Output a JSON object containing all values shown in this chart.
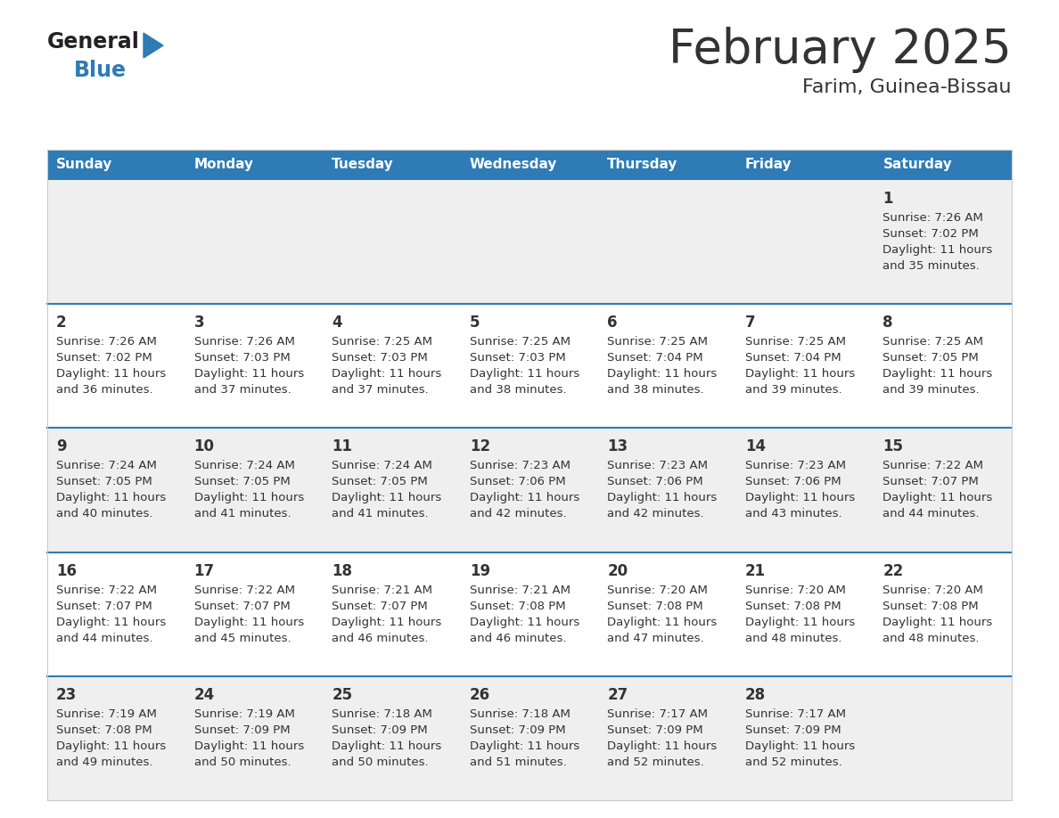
{
  "title": "February 2025",
  "subtitle": "Farim, Guinea-Bissau",
  "header_bg_color": "#2E7BB5",
  "header_text_color": "#FFFFFF",
  "cell_bg_color_odd": "#EFEFEF",
  "cell_bg_color_even": "#FFFFFF",
  "divider_color": "#2E7BB5",
  "text_color": "#333333",
  "days_of_week": [
    "Sunday",
    "Monday",
    "Tuesday",
    "Wednesday",
    "Thursday",
    "Friday",
    "Saturday"
  ],
  "logo_color1": "#222222",
  "logo_color2": "#2E7BB5",
  "calendar": [
    [
      null,
      null,
      null,
      null,
      null,
      null,
      {
        "day": 1,
        "sunrise": "7:26 AM",
        "sunset": "7:02 PM",
        "daylight": "11 hours",
        "daylight2": "and 35 minutes."
      }
    ],
    [
      {
        "day": 2,
        "sunrise": "7:26 AM",
        "sunset": "7:02 PM",
        "daylight": "11 hours",
        "daylight2": "and 36 minutes."
      },
      {
        "day": 3,
        "sunrise": "7:26 AM",
        "sunset": "7:03 PM",
        "daylight": "11 hours",
        "daylight2": "and 37 minutes."
      },
      {
        "day": 4,
        "sunrise": "7:25 AM",
        "sunset": "7:03 PM",
        "daylight": "11 hours",
        "daylight2": "and 37 minutes."
      },
      {
        "day": 5,
        "sunrise": "7:25 AM",
        "sunset": "7:03 PM",
        "daylight": "11 hours",
        "daylight2": "and 38 minutes."
      },
      {
        "day": 6,
        "sunrise": "7:25 AM",
        "sunset": "7:04 PM",
        "daylight": "11 hours",
        "daylight2": "and 38 minutes."
      },
      {
        "day": 7,
        "sunrise": "7:25 AM",
        "sunset": "7:04 PM",
        "daylight": "11 hours",
        "daylight2": "and 39 minutes."
      },
      {
        "day": 8,
        "sunrise": "7:25 AM",
        "sunset": "7:05 PM",
        "daylight": "11 hours",
        "daylight2": "and 39 minutes."
      }
    ],
    [
      {
        "day": 9,
        "sunrise": "7:24 AM",
        "sunset": "7:05 PM",
        "daylight": "11 hours",
        "daylight2": "and 40 minutes."
      },
      {
        "day": 10,
        "sunrise": "7:24 AM",
        "sunset": "7:05 PM",
        "daylight": "11 hours",
        "daylight2": "and 41 minutes."
      },
      {
        "day": 11,
        "sunrise": "7:24 AM",
        "sunset": "7:05 PM",
        "daylight": "11 hours",
        "daylight2": "and 41 minutes."
      },
      {
        "day": 12,
        "sunrise": "7:23 AM",
        "sunset": "7:06 PM",
        "daylight": "11 hours",
        "daylight2": "and 42 minutes."
      },
      {
        "day": 13,
        "sunrise": "7:23 AM",
        "sunset": "7:06 PM",
        "daylight": "11 hours",
        "daylight2": "and 42 minutes."
      },
      {
        "day": 14,
        "sunrise": "7:23 AM",
        "sunset": "7:06 PM",
        "daylight": "11 hours",
        "daylight2": "and 43 minutes."
      },
      {
        "day": 15,
        "sunrise": "7:22 AM",
        "sunset": "7:07 PM",
        "daylight": "11 hours",
        "daylight2": "and 44 minutes."
      }
    ],
    [
      {
        "day": 16,
        "sunrise": "7:22 AM",
        "sunset": "7:07 PM",
        "daylight": "11 hours",
        "daylight2": "and 44 minutes."
      },
      {
        "day": 17,
        "sunrise": "7:22 AM",
        "sunset": "7:07 PM",
        "daylight": "11 hours",
        "daylight2": "and 45 minutes."
      },
      {
        "day": 18,
        "sunrise": "7:21 AM",
        "sunset": "7:07 PM",
        "daylight": "11 hours",
        "daylight2": "and 46 minutes."
      },
      {
        "day": 19,
        "sunrise": "7:21 AM",
        "sunset": "7:08 PM",
        "daylight": "11 hours",
        "daylight2": "and 46 minutes."
      },
      {
        "day": 20,
        "sunrise": "7:20 AM",
        "sunset": "7:08 PM",
        "daylight": "11 hours",
        "daylight2": "and 47 minutes."
      },
      {
        "day": 21,
        "sunrise": "7:20 AM",
        "sunset": "7:08 PM",
        "daylight": "11 hours",
        "daylight2": "and 48 minutes."
      },
      {
        "day": 22,
        "sunrise": "7:20 AM",
        "sunset": "7:08 PM",
        "daylight": "11 hours",
        "daylight2": "and 48 minutes."
      }
    ],
    [
      {
        "day": 23,
        "sunrise": "7:19 AM",
        "sunset": "7:08 PM",
        "daylight": "11 hours",
        "daylight2": "and 49 minutes."
      },
      {
        "day": 24,
        "sunrise": "7:19 AM",
        "sunset": "7:09 PM",
        "daylight": "11 hours",
        "daylight2": "and 50 minutes."
      },
      {
        "day": 25,
        "sunrise": "7:18 AM",
        "sunset": "7:09 PM",
        "daylight": "11 hours",
        "daylight2": "and 50 minutes."
      },
      {
        "day": 26,
        "sunrise": "7:18 AM",
        "sunset": "7:09 PM",
        "daylight": "11 hours",
        "daylight2": "and 51 minutes."
      },
      {
        "day": 27,
        "sunrise": "7:17 AM",
        "sunset": "7:09 PM",
        "daylight": "11 hours",
        "daylight2": "and 52 minutes."
      },
      {
        "day": 28,
        "sunrise": "7:17 AM",
        "sunset": "7:09 PM",
        "daylight": "11 hours",
        "daylight2": "and 52 minutes."
      },
      null
    ]
  ],
  "figsize": [
    11.88,
    9.18
  ],
  "dpi": 100
}
